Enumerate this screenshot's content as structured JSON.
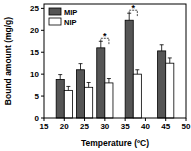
{
  "chart_data": {
    "type": "bar",
    "x_label": "Temperature (ºC)",
    "y_label": "Bound amount (mg/g)",
    "x": [
      20,
      25,
      30,
      37,
      45
    ],
    "series": [
      {
        "name": "MIP",
        "color": "#555555",
        "values": [
          8.8,
          11,
          16,
          22.3,
          15.3
        ],
        "errors": [
          1.1,
          1.4,
          1.5,
          1.6,
          1.4
        ]
      },
      {
        "name": "NIP",
        "color": "#ffffff",
        "values": [
          6.3,
          7,
          8,
          10,
          12.5
        ],
        "errors": [
          0.9,
          1.1,
          1,
          1,
          1.2
        ]
      }
    ],
    "xlim": [
      15,
      50
    ],
    "xticks": [
      15,
      20,
      25,
      30,
      35,
      40,
      45,
      50
    ],
    "ylim": [
      0,
      26
    ],
    "yticks": [
      0,
      5,
      10,
      15,
      20,
      25
    ],
    "legend": "top-left",
    "annotations": [
      {
        "text": "*",
        "x": 30
      },
      {
        "text": "*",
        "x": 37
      }
    ]
  }
}
